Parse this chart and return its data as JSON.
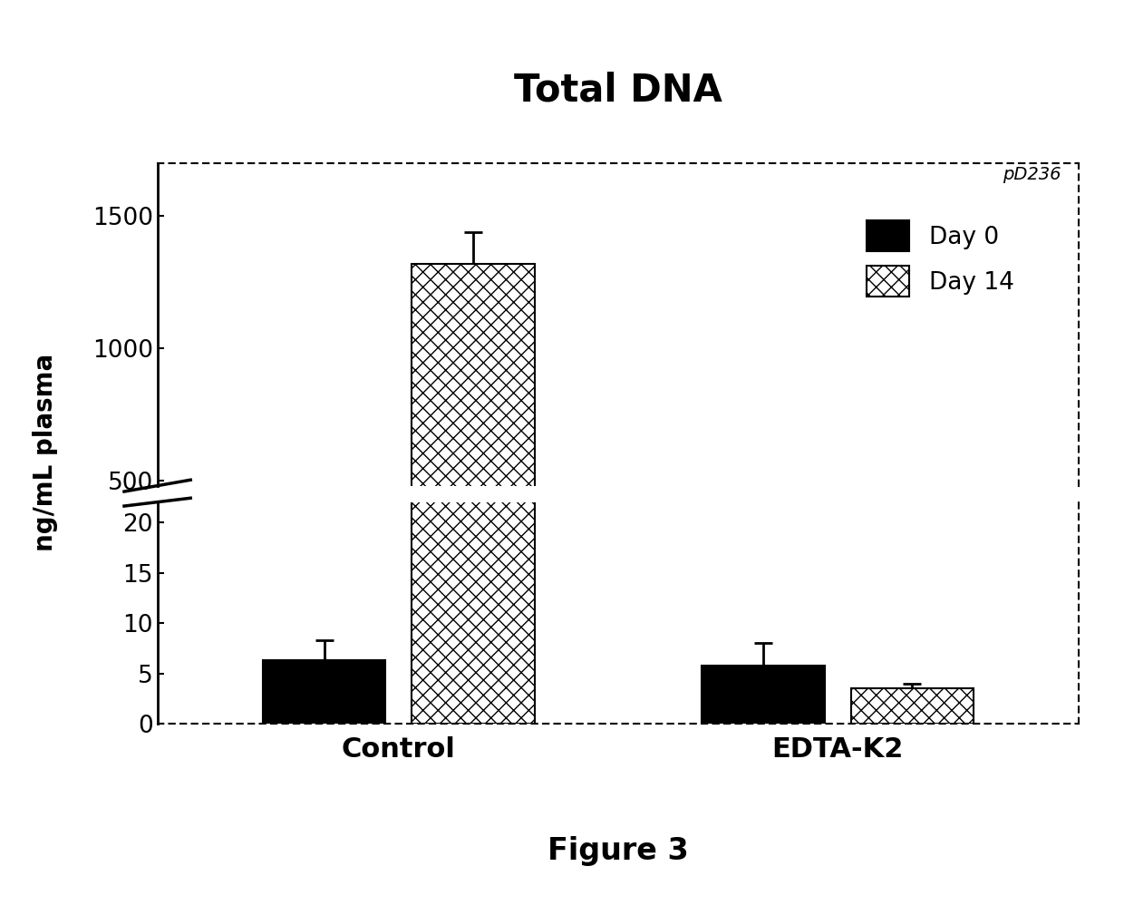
{
  "title": "Total DNA",
  "subtitle": "pD236",
  "figure_label": "Figure 3",
  "ylabel": "ng/mL plasma",
  "categories": [
    "Control",
    "EDTA-K2"
  ],
  "day0_values": [
    6.3,
    5.8
  ],
  "day0_errors": [
    2.0,
    2.2
  ],
  "day14_values": [
    1320,
    3.5
  ],
  "day14_errors": [
    120,
    0.5
  ],
  "legend_labels": [
    "Day 0",
    "Day 14"
  ],
  "bar_color_day0": "#000000",
  "bar_color_day14": "#ffffff",
  "hatch_day14": "xx",
  "background_color": "#ffffff",
  "axis_bg": "#ffffff",
  "lower_ylim": [
    0,
    22
  ],
  "upper_ylim": [
    480,
    1700
  ],
  "lower_yticks": [
    0,
    5,
    10,
    15,
    20
  ],
  "upper_yticks": [
    500,
    1000,
    1500
  ],
  "title_fontsize": 30,
  "label_fontsize": 20,
  "tick_fontsize": 19,
  "legend_fontsize": 19,
  "fig_caption_fontsize": 24,
  "subtitle_fontsize": 14
}
